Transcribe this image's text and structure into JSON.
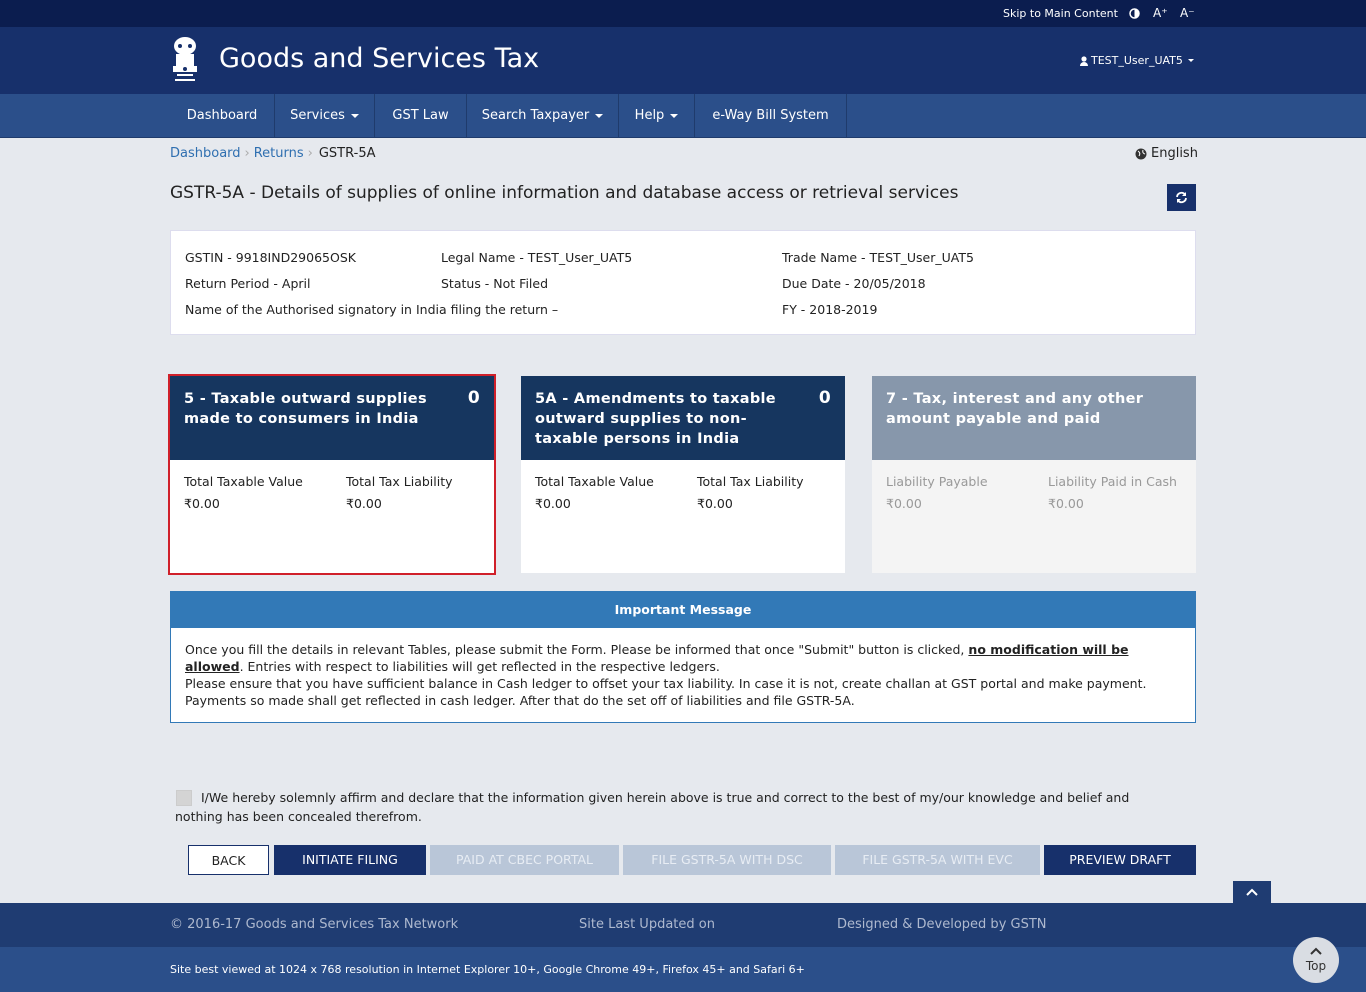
{
  "topbar": {
    "skip": "Skip to Main Content",
    "font_up": "A⁺",
    "font_down": "A⁻"
  },
  "header": {
    "title": "Goods and Services Tax",
    "user": "TEST_User_UAT5"
  },
  "nav": [
    "Dashboard",
    "Services",
    "GST Law",
    "Search Taxpayer",
    "Help",
    "e-Way Bill System"
  ],
  "breadcrumb": [
    "Dashboard",
    "Returns",
    "GSTR-5A"
  ],
  "language": "English",
  "page_title": "GSTR-5A - Details of supplies of online information and database access or retrieval services",
  "info": {
    "gstin": "GSTIN - 9918IND29065OSK",
    "legal_name": "Legal Name - TEST_User_UAT5",
    "trade_name": "Trade Name - TEST_User_UAT5",
    "return_period": "Return Period - April",
    "status": "Status - Not Filed",
    "due_date": "Due Date - 20/05/2018",
    "signatory": "Name of the Authorised signatory in India filing the return –",
    "fy": "FY - 2018-2019"
  },
  "tiles": [
    {
      "title": "5 - Taxable outward supplies made to consumers in India",
      "count": 0,
      "labels": [
        "Total Taxable Value",
        "Total Tax Liability"
      ],
      "amounts": [
        "₹0.00",
        "₹0.00"
      ]
    },
    {
      "title": "5A - Amendments to taxable outward supplies to non-taxable persons in India",
      "count": 0,
      "labels": [
        "Total Taxable Value",
        "Total Tax Liability"
      ],
      "amounts": [
        "₹0.00",
        "₹0.00"
      ]
    },
    {
      "title": "7 - Tax, interest and any other amount payable and paid",
      "labels": [
        "Liability Payable",
        "Liability Paid in Cash"
      ],
      "amounts": [
        "₹0.00",
        "₹0.00"
      ]
    }
  ],
  "message": {
    "heading": "Important Message",
    "text_1": "Once you fill the details in relevant Tables, please submit the Form. Please be informed that once \"Submit\" button is clicked,",
    "emphasis": "no modification will be allowed",
    "text_2": ". Entries with respect to liabilities will get reflected in the respective ledgers.",
    "text_3": "Please ensure that you have sufficient balance in Cash ledger to offset your tax liability. In case it is not, create challan at GST portal and make payment. Payments so made shall get reflected in cash ledger. After that do the set off of liabilities and file GSTR-5A."
  },
  "declaration": "I/We hereby solemnly affirm and declare that the information given herein above is true and correct to the best of my/our knowledge and belief and nothing has been concealed therefrom.",
  "buttons": [
    "BACK",
    "INITIATE FILING",
    "PAID AT CBEC PORTAL",
    "FILE GSTR-5A WITH DSC",
    "FILE GSTR-5A WITH EVC",
    "PREVIEW DRAFT"
  ],
  "footer": {
    "copyright": "© 2016-17 Goods and Services Tax Network",
    "updated": "Site Last Updated on",
    "designed": "Designed & Developed by GSTN",
    "best_viewed": "Site best viewed at 1024 x 768 resolution in Internet Explorer 10+, Google Chrome 49+, Firefox 45+ and Safari 6+"
  },
  "top_button": "Top"
}
